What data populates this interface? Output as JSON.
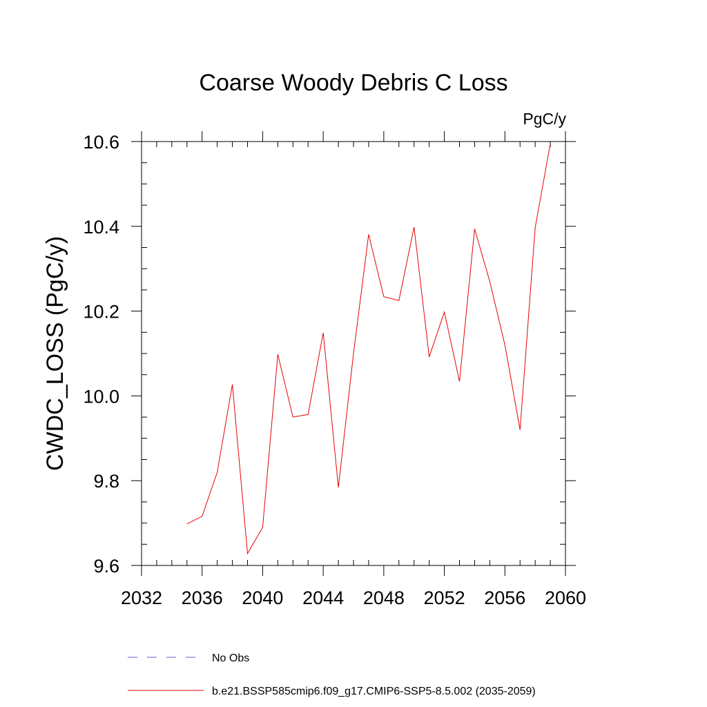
{
  "chart_data": {
    "type": "line",
    "title": "Coarse Woody Debris C Loss",
    "units_label": "PgC/y",
    "ylabel": "CWDC_LOSS  (PgC/y)",
    "xlabel": "",
    "xlim": [
      2032,
      2060
    ],
    "ylim": [
      9.6,
      10.6
    ],
    "x_ticks": [
      2032,
      2036,
      2040,
      2044,
      2048,
      2052,
      2056,
      2060
    ],
    "y_ticks": [
      9.6,
      9.8,
      10.0,
      10.2,
      10.4,
      10.6
    ],
    "x_tick_labels": [
      "2032",
      "2036",
      "2040",
      "2044",
      "2048",
      "2052",
      "2056",
      "2060"
    ],
    "y_tick_labels": [
      "9.6",
      "9.8",
      "10.0",
      "10.2",
      "10.4",
      "10.6"
    ],
    "x_minor_step": 1,
    "y_minor_step": 0.05,
    "grid": false,
    "series": [
      {
        "name": "b.e21.BSSP585cmip6.f09_g17.CMIP6-SSP5-8.5.002 (2035-2059)",
        "color": "#e60000",
        "dash": "solid",
        "x": [
          2035,
          2036,
          2037,
          2038,
          2039,
          2040,
          2041,
          2042,
          2043,
          2044,
          2045,
          2046,
          2047,
          2048,
          2049,
          2050,
          2051,
          2052,
          2053,
          2054,
          2055,
          2056,
          2057,
          2058,
          2059
        ],
        "values": [
          9.698,
          9.716,
          9.82,
          10.027,
          9.628,
          9.69,
          10.098,
          9.95,
          9.956,
          10.149,
          9.784,
          10.1,
          10.381,
          10.234,
          10.225,
          10.398,
          10.092,
          10.198,
          10.034,
          10.394,
          10.27,
          10.12,
          9.92,
          10.397,
          10.595
        ]
      }
    ],
    "legend": {
      "placement": "bottom",
      "entries": [
        {
          "label": "No Obs",
          "color": "#6a5acd",
          "dash": "dashed"
        },
        {
          "label": "b.e21.BSSP585cmip6.f09_g17.CMIP6-SSP5-8.5.002 (2035-2059)",
          "color": "#e60000",
          "dash": "solid"
        }
      ]
    }
  }
}
